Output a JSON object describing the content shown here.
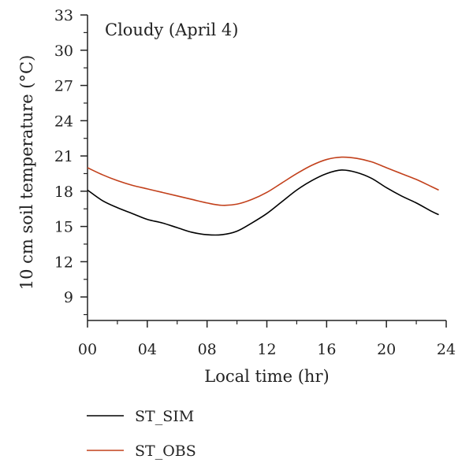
{
  "chart_data": {
    "type": "line",
    "annotation": "Cloudy (April 4)",
    "xlabel": "Local time (hr)",
    "ylabel": "10 cm soil temperature (°C)",
    "xlim": [
      0,
      24
    ],
    "ylim": [
      7,
      33
    ],
    "x_ticks": [
      0,
      4,
      8,
      12,
      16,
      20,
      24
    ],
    "x_tick_labels": [
      "00",
      "04",
      "08",
      "12",
      "16",
      "20",
      "24"
    ],
    "y_ticks": [
      9,
      12,
      15,
      18,
      21,
      24,
      27,
      30,
      33
    ],
    "y_tick_labels": [
      "9",
      "12",
      "15",
      "18",
      "21",
      "24",
      "27",
      "30",
      "33"
    ],
    "grid": false,
    "legend_position": "bottom-left",
    "series": [
      {
        "name": "ST_SIM",
        "color": "#000000",
        "x": [
          0,
          1,
          2,
          3,
          4,
          5,
          6,
          7,
          8,
          9,
          10,
          11,
          12,
          13,
          14,
          15,
          16,
          17,
          18,
          19,
          20,
          21,
          22,
          23,
          23.5
        ],
        "y": [
          18.1,
          17.2,
          16.6,
          16.1,
          15.6,
          15.3,
          14.9,
          14.5,
          14.3,
          14.3,
          14.6,
          15.3,
          16.1,
          17.1,
          18.1,
          18.9,
          19.5,
          19.8,
          19.6,
          19.1,
          18.3,
          17.6,
          17.0,
          16.3,
          16.0
        ],
        "emphasis": "normal"
      },
      {
        "name": "ST_OBS",
        "color": "#c2401b",
        "x": [
          0,
          1,
          2,
          3,
          4,
          5,
          6,
          7,
          8,
          9,
          10,
          11,
          12,
          13,
          14,
          15,
          16,
          17,
          18,
          19,
          20,
          21,
          22,
          23,
          23.5
        ],
        "y": [
          20.0,
          19.4,
          18.9,
          18.5,
          18.2,
          17.9,
          17.6,
          17.3,
          17.0,
          16.8,
          16.9,
          17.3,
          17.9,
          18.7,
          19.5,
          20.2,
          20.7,
          20.9,
          20.8,
          20.5,
          20.0,
          19.5,
          19.0,
          18.4,
          18.1
        ],
        "emphasis": "normal"
      }
    ]
  }
}
